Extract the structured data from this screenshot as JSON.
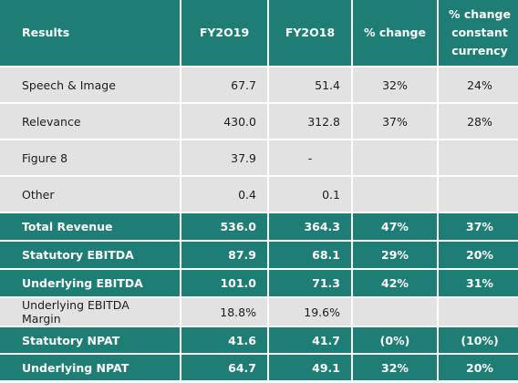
{
  "header": {
    "results": "Results",
    "fy2019": "FY2O19",
    "fy2018": "FY2O18",
    "pct_change": "% change",
    "pct_change_cc_line1": "% change",
    "pct_change_cc_line2": "constant",
    "pct_change_cc_line3": "currency"
  },
  "rows": {
    "speech": {
      "label": "Speech & Image",
      "fy2019": "67.7",
      "fy2018": "51.4",
      "pct": "32%",
      "pct_cc": "24%"
    },
    "relevance": {
      "label": "Relevance",
      "fy2019": "430.0",
      "fy2018": "312.8",
      "pct": "37%",
      "pct_cc": "28%"
    },
    "figure8": {
      "label": "Figure 8",
      "fy2019": "37.9",
      "fy2018": "-",
      "pct": "",
      "pct_cc": ""
    },
    "other": {
      "label": "Other",
      "fy2019": "0.4",
      "fy2018": "0.1",
      "pct": "",
      "pct_cc": ""
    },
    "total_revenue": {
      "label": "Total Revenue",
      "fy2019": "536.0",
      "fy2018": "364.3",
      "pct": "47%",
      "pct_cc": "37%"
    },
    "statutory_ebitda": {
      "label": "Statutory EBITDA",
      "fy2019": "87.9",
      "fy2018": "68.1",
      "pct": "29%",
      "pct_cc": "20%"
    },
    "underlying_ebitda": {
      "label": "Underlying EBITDA",
      "fy2019": "101.0",
      "fy2018": "71.3",
      "pct": "42%",
      "pct_cc": "31%"
    },
    "underlying_ebitda_margin": {
      "label": "Underlying EBITDA Margin",
      "fy2019": "18.8%",
      "fy2018": "19.6%",
      "pct": "",
      "pct_cc": ""
    },
    "statutory_npat": {
      "label": "Statutory NPAT",
      "fy2019": "41.6",
      "fy2018": "41.7",
      "pct": "(0%)",
      "pct_cc": "(10%)"
    },
    "underlying_npat": {
      "label": "Underlying NPAT",
      "fy2019": "64.7",
      "fy2018": "49.1",
      "pct": "32%",
      "pct_cc": "20%"
    }
  },
  "colors": {
    "teal": "#1e7d74",
    "grey": "#e2e2e2",
    "white": "#ffffff"
  }
}
